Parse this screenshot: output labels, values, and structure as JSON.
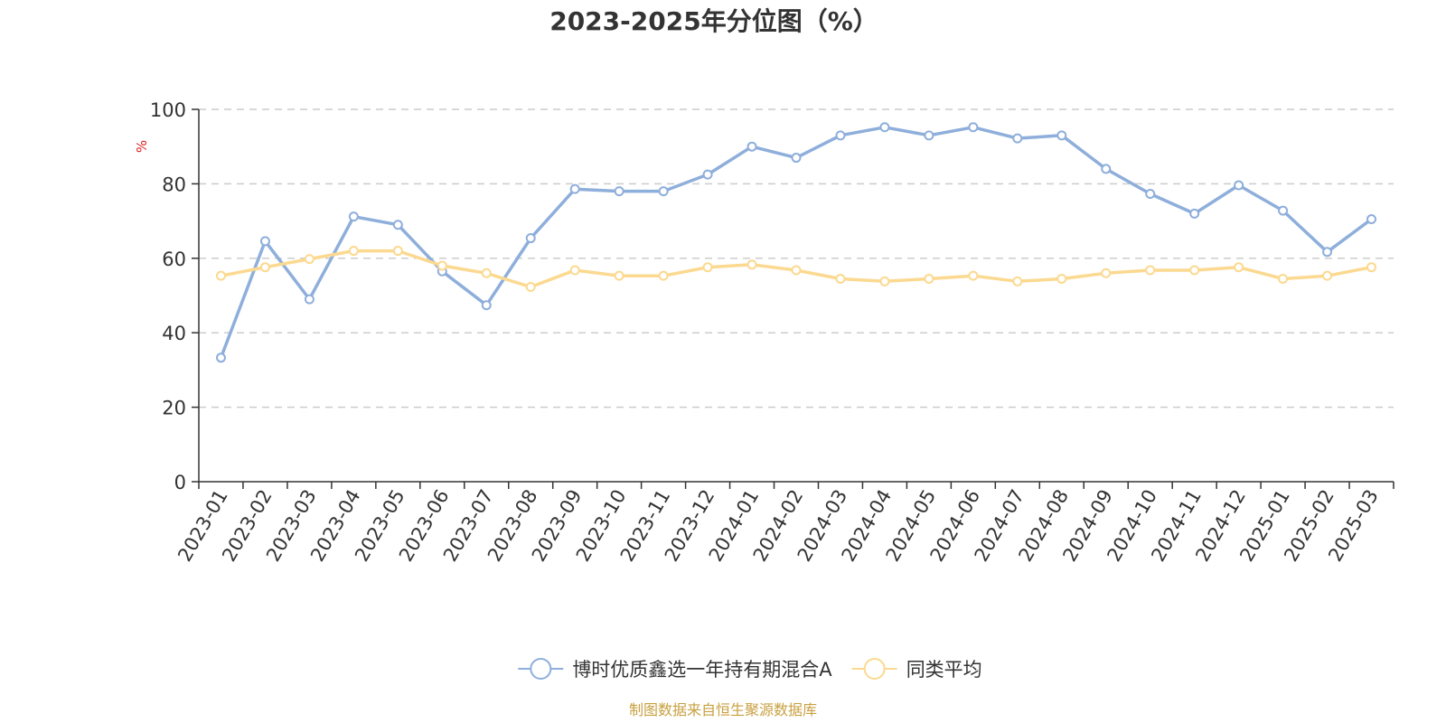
{
  "chart_data": {
    "type": "line",
    "title": "2023-2025年分位图（%）",
    "ylabel": "%",
    "ylim": [
      0,
      100
    ],
    "yticks": [
      0,
      20,
      40,
      60,
      80,
      100
    ],
    "grid": true,
    "legend_position": "bottom-center",
    "categories": [
      "2023-01",
      "2023-02",
      "2023-03",
      "2023-04",
      "2023-05",
      "2023-06",
      "2023-07",
      "2023-08",
      "2023-09",
      "2023-10",
      "2023-11",
      "2023-12",
      "2024-01",
      "2024-02",
      "2024-03",
      "2024-04",
      "2024-05",
      "2024-06",
      "2024-07",
      "2024-08",
      "2024-09",
      "2024-10",
      "2024-11",
      "2024-12",
      "2025-01",
      "2025-02",
      "2025-03"
    ],
    "series": [
      {
        "name": "博时优质鑫选一年持有期混合A",
        "color": "#8eaedb",
        "values": [
          33.3,
          64.6,
          49.0,
          71.2,
          69.0,
          56.5,
          47.4,
          65.4,
          78.6,
          78.0,
          78.0,
          82.5,
          90.0,
          87.0,
          93.0,
          95.2,
          93.0,
          95.2,
          92.2,
          93.0,
          84.0,
          77.3,
          72.0,
          79.6,
          72.8,
          61.7,
          70.5
        ]
      },
      {
        "name": "同类平均",
        "color": "#fbd990",
        "values": [
          55.3,
          57.6,
          59.8,
          62.0,
          62.0,
          58.0,
          56.0,
          52.3,
          56.8,
          55.3,
          55.3,
          57.6,
          58.3,
          56.8,
          54.5,
          53.8,
          54.5,
          55.3,
          53.8,
          54.5,
          56.0,
          56.8,
          56.8,
          57.6,
          54.5,
          55.3,
          57.6
        ]
      }
    ]
  },
  "source_note": "制图数据来自恒生聚源数据库"
}
